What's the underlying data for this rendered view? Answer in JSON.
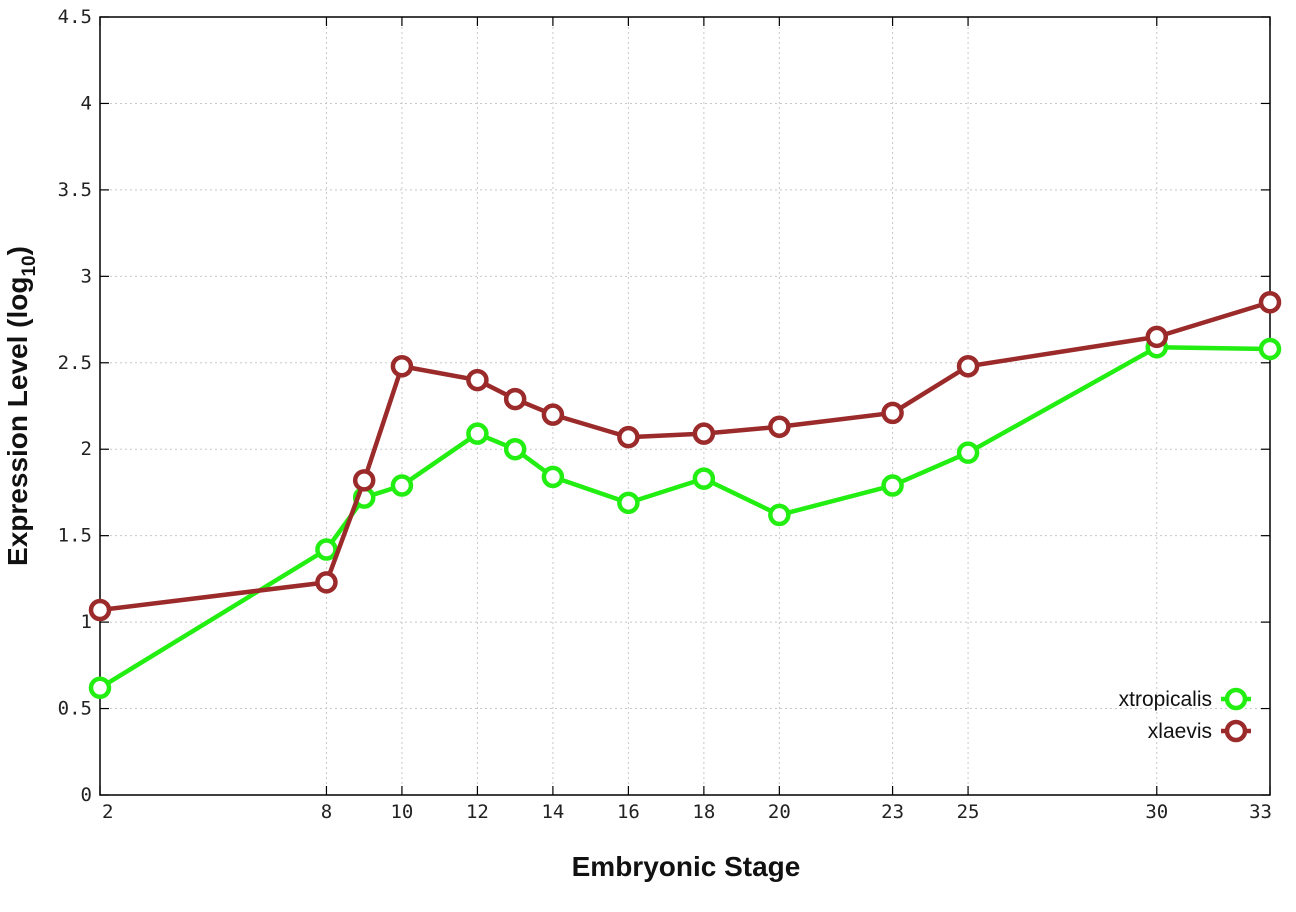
{
  "chart_data": {
    "type": "line",
    "xlabel": "Embryonic Stage",
    "ylabel_main": "Expression Level (log",
    "ylabel_sub": "10",
    "ylabel_close": ")",
    "xlim": [
      2,
      33
    ],
    "ylim": [
      0,
      4.5
    ],
    "x_ticks": [
      2,
      8,
      10,
      12,
      14,
      16,
      18,
      20,
      23,
      25,
      30,
      33
    ],
    "y_ticks": [
      0,
      0.5,
      1,
      1.5,
      2,
      2.5,
      3,
      3.5,
      4,
      4.5
    ],
    "y_tick_labels": [
      "0",
      "0.5",
      "1",
      "1.5",
      "2",
      "2.5",
      "3",
      "3.5",
      "4",
      "4.5"
    ],
    "grid": true,
    "legend_position": "bottom-right",
    "series": [
      {
        "name": "xtropicalis",
        "color": "#22ee11",
        "points": [
          {
            "x": 2,
            "y": 0.62
          },
          {
            "x": 8,
            "y": 1.42
          },
          {
            "x": 9,
            "y": 1.72
          },
          {
            "x": 10,
            "y": 1.79
          },
          {
            "x": 12,
            "y": 2.09
          },
          {
            "x": 13,
            "y": 2.0
          },
          {
            "x": 14,
            "y": 1.84
          },
          {
            "x": 16,
            "y": 1.69
          },
          {
            "x": 18,
            "y": 1.83
          },
          {
            "x": 20,
            "y": 1.62
          },
          {
            "x": 23,
            "y": 1.79
          },
          {
            "x": 25,
            "y": 1.98
          },
          {
            "x": 30,
            "y": 2.59
          },
          {
            "x": 33,
            "y": 2.58
          }
        ]
      },
      {
        "name": "xlaevis",
        "color": "#9b2a2a",
        "points": [
          {
            "x": 2,
            "y": 1.07
          },
          {
            "x": 8,
            "y": 1.23
          },
          {
            "x": 9,
            "y": 1.82
          },
          {
            "x": 10,
            "y": 2.48
          },
          {
            "x": 12,
            "y": 2.4
          },
          {
            "x": 13,
            "y": 2.29
          },
          {
            "x": 14,
            "y": 2.2
          },
          {
            "x": 16,
            "y": 2.07
          },
          {
            "x": 18,
            "y": 2.09
          },
          {
            "x": 20,
            "y": 2.13
          },
          {
            "x": 23,
            "y": 2.21
          },
          {
            "x": 25,
            "y": 2.48
          },
          {
            "x": 30,
            "y": 2.65
          },
          {
            "x": 33,
            "y": 2.85
          }
        ]
      }
    ]
  }
}
